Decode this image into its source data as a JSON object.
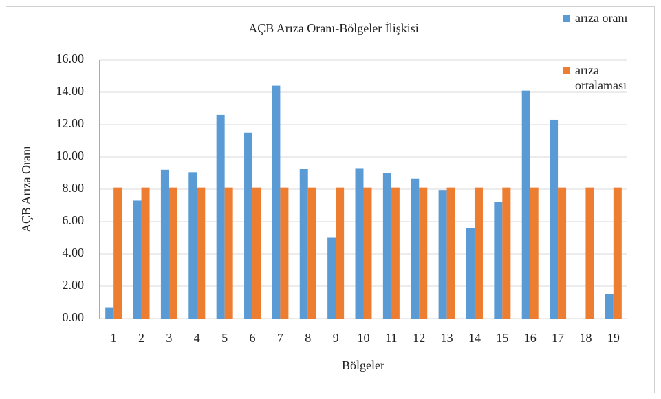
{
  "chart_data": {
    "type": "bar",
    "title": "AÇB Arıza Oranı-Bölgeler İlişkisi",
    "x_label": "Bölgeler",
    "y_label": "AÇB  Arıza Oranı",
    "categories": [
      "1",
      "2",
      "3",
      "4",
      "5",
      "6",
      "7",
      "8",
      "9",
      "10",
      "11",
      "12",
      "13",
      "14",
      "15",
      "16",
      "17",
      "18",
      "19"
    ],
    "series": [
      {
        "name": "arıza oranı",
        "color": "#5b9bd5",
        "values": [
          0.7,
          7.3,
          9.2,
          9.05,
          12.6,
          11.5,
          14.4,
          9.25,
          5.0,
          9.3,
          9.0,
          8.65,
          7.95,
          5.6,
          7.2,
          14.1,
          12.3,
          0,
          1.5
        ]
      },
      {
        "name": "arıza ortalaması",
        "color": "#ed7d31",
        "values": [
          8.1,
          8.1,
          8.1,
          8.1,
          8.1,
          8.1,
          8.1,
          8.1,
          8.1,
          8.1,
          8.1,
          8.1,
          8.1,
          8.1,
          8.1,
          8.1,
          8.1,
          8.1,
          8.1
        ]
      }
    ],
    "ylim": [
      0,
      16
    ],
    "yticks": [
      {
        "value": 0,
        "label": "0.00"
      },
      {
        "value": 2,
        "label": "2.00"
      },
      {
        "value": 4,
        "label": "4.00"
      },
      {
        "value": 6,
        "label": "6.00"
      },
      {
        "value": 8,
        "label": "8.00"
      },
      {
        "value": 10,
        "label": "10.00"
      },
      {
        "value": 12,
        "label": "12.00"
      },
      {
        "value": 14,
        "label": "14.00"
      },
      {
        "value": 16,
        "label": "16.00"
      }
    ],
    "grid": true,
    "legend": "top-right"
  }
}
